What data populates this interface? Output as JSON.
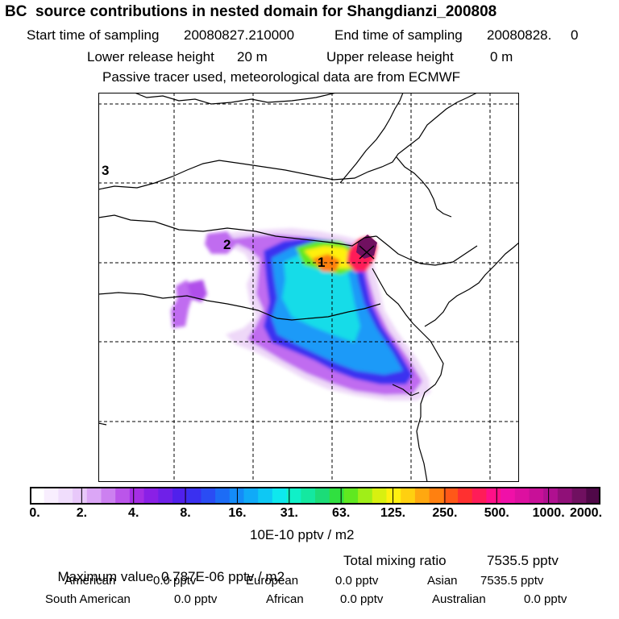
{
  "header": {
    "title": "BC  source contributions in nested domain for Shangdianzi_200808",
    "line_start_label": "Start time of sampling",
    "start_time": "20080827.210000",
    "line_end_label": "End time of sampling",
    "end_time": "20080828.     0",
    "lower_release_label": "Lower release height",
    "lower_release_value": "20 m",
    "upper_release_label": "Upper release height",
    "upper_release_value": "0 m",
    "note": "Passive tracer used, meteorological data are from ECMWF"
  },
  "map": {
    "labels": [
      "1",
      "2",
      "3"
    ]
  },
  "colorbar": {
    "tick_labels": [
      "0.",
      "2.",
      "4.",
      "8.",
      "16.",
      "31.",
      "63.",
      "125.",
      "250.",
      "500.",
      "1000.",
      "2000."
    ],
    "colors": [
      "#ffffff",
      "#f8eefe",
      "#f0ddfc",
      "#e8c8fa",
      "#dba6f6",
      "#cc80f0",
      "#bb55ea",
      "#a52ee4",
      "#8a20e6",
      "#6f20e8",
      "#5020ec",
      "#3a30f0",
      "#2a4cf4",
      "#1c6cf6",
      "#148cf8",
      "#10aaf8",
      "#0ec8f4",
      "#0ee8ee",
      "#10f0c8",
      "#14e8a0",
      "#1cdc78",
      "#30e040",
      "#60e820",
      "#a0ee18",
      "#d8f010",
      "#fff010",
      "#ffd010",
      "#ffa810",
      "#ff8010",
      "#ff5818",
      "#ff3030",
      "#ff1c58",
      "#ff1088",
      "#f010a8",
      "#dd10a0",
      "#c81098",
      "#b01090",
      "#901078",
      "#701060",
      "#500848"
    ],
    "unit": "10E-10 pptv / m2"
  },
  "summary": {
    "max_label": "Maximum value",
    "max_value": "0.787E-06 pptv / m2",
    "total_label": "Total mixing ratio",
    "total_value": "7535.5 pptv",
    "regions": [
      {
        "name": "American",
        "value": "0.0 pptv"
      },
      {
        "name": "European",
        "value": "0.0 pptv"
      },
      {
        "name": "Asian",
        "value": "7535.5 pptv"
      },
      {
        "name": "South American",
        "value": "0.0 pptv"
      },
      {
        "name": "African",
        "value": "0.0 pptv"
      },
      {
        "name": "Australian",
        "value": "0.0 pptv"
      }
    ]
  }
}
